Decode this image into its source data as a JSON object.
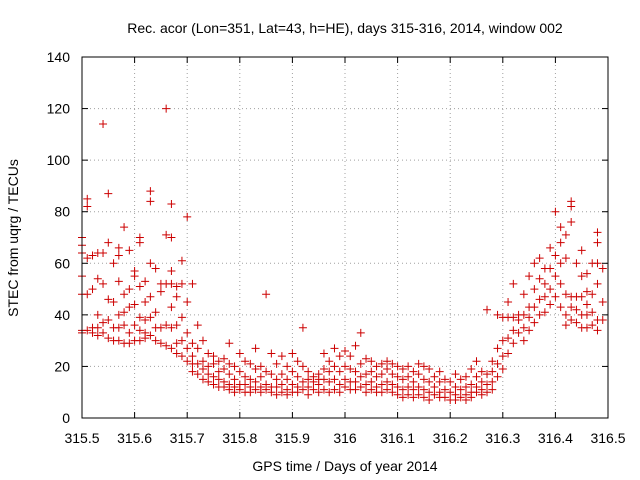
{
  "chart_data": {
    "type": "scatter",
    "title": "Rec. acor (Lon=351, Lat=43, h=HE), days 315-316, 2014, window 002",
    "xlabel": "GPS time / Days of year 2014",
    "ylabel": "STEC from uqrg / TECUs",
    "xlim": [
      315.5,
      316.5
    ],
    "ylim": [
      0,
      140
    ],
    "grid": true,
    "marker": "plus",
    "marker_color": "#cc0000",
    "xticks": [
      "315.5",
      "315.6",
      "315.7",
      "315.8",
      "315.9",
      "316",
      "316.1",
      "316.2",
      "316.3",
      "316.4",
      "316.5"
    ],
    "yticks": [
      "0",
      "20",
      "40",
      "60",
      "80",
      "100",
      "120",
      "140"
    ],
    "points": [
      [
        315.5,
        70
      ],
      [
        315.5,
        67
      ],
      [
        315.5,
        64
      ],
      [
        315.5,
        55
      ],
      [
        315.5,
        48
      ],
      [
        315.5,
        34
      ],
      [
        315.5,
        33
      ],
      [
        315.51,
        85
      ],
      [
        315.51,
        82
      ],
      [
        315.51,
        62
      ],
      [
        315.51,
        48
      ],
      [
        315.51,
        34
      ],
      [
        315.52,
        63
      ],
      [
        315.52,
        50
      ],
      [
        315.52,
        35
      ],
      [
        315.52,
        33
      ],
      [
        315.53,
        64
      ],
      [
        315.53,
        54
      ],
      [
        315.53,
        40
      ],
      [
        315.53,
        35
      ],
      [
        315.53,
        32
      ],
      [
        315.54,
        114
      ],
      [
        315.54,
        64
      ],
      [
        315.54,
        52
      ],
      [
        315.54,
        37
      ],
      [
        315.54,
        33
      ],
      [
        315.55,
        87
      ],
      [
        315.55,
        68
      ],
      [
        315.55,
        46
      ],
      [
        315.55,
        38
      ],
      [
        315.55,
        31
      ],
      [
        315.56,
        60
      ],
      [
        315.56,
        45
      ],
      [
        315.56,
        35
      ],
      [
        315.56,
        30
      ],
      [
        315.57,
        66
      ],
      [
        315.57,
        63
      ],
      [
        315.57,
        53
      ],
      [
        315.57,
        40
      ],
      [
        315.57,
        35
      ],
      [
        315.57,
        30
      ],
      [
        315.58,
        74
      ],
      [
        315.58,
        48
      ],
      [
        315.58,
        41
      ],
      [
        315.58,
        36
      ],
      [
        315.58,
        29
      ],
      [
        315.59,
        65
      ],
      [
        315.59,
        50
      ],
      [
        315.59,
        43
      ],
      [
        315.59,
        33
      ],
      [
        315.59,
        29
      ],
      [
        315.6,
        57
      ],
      [
        315.6,
        55
      ],
      [
        315.6,
        44
      ],
      [
        315.6,
        36
      ],
      [
        315.6,
        30
      ],
      [
        315.61,
        70
      ],
      [
        315.61,
        68
      ],
      [
        315.61,
        51
      ],
      [
        315.61,
        39
      ],
      [
        315.61,
        34
      ],
      [
        315.61,
        30
      ],
      [
        315.62,
        53
      ],
      [
        315.62,
        45
      ],
      [
        315.62,
        38
      ],
      [
        315.62,
        33
      ],
      [
        315.62,
        31
      ],
      [
        315.63,
        88
      ],
      [
        315.63,
        84
      ],
      [
        315.63,
        60
      ],
      [
        315.63,
        47
      ],
      [
        315.63,
        39
      ],
      [
        315.63,
        32
      ],
      [
        315.64,
        58
      ],
      [
        315.64,
        41
      ],
      [
        315.64,
        35
      ],
      [
        315.64,
        30
      ],
      [
        315.65,
        52
      ],
      [
        315.65,
        49
      ],
      [
        315.65,
        35
      ],
      [
        315.65,
        29
      ],
      [
        315.66,
        120
      ],
      [
        315.66,
        71
      ],
      [
        315.66,
        52
      ],
      [
        315.66,
        36
      ],
      [
        315.66,
        28
      ],
      [
        315.67,
        83
      ],
      [
        315.67,
        70
      ],
      [
        315.67,
        57
      ],
      [
        315.67,
        52
      ],
      [
        315.67,
        43
      ],
      [
        315.67,
        35
      ],
      [
        315.67,
        27
      ],
      [
        315.68,
        51
      ],
      [
        315.68,
        47
      ],
      [
        315.68,
        36
      ],
      [
        315.68,
        29
      ],
      [
        315.68,
        25
      ],
      [
        315.69,
        61
      ],
      [
        315.69,
        52
      ],
      [
        315.69,
        39
      ],
      [
        315.69,
        30
      ],
      [
        315.69,
        24
      ],
      [
        315.7,
        78
      ],
      [
        315.7,
        45
      ],
      [
        315.7,
        33
      ],
      [
        315.7,
        27
      ],
      [
        315.7,
        22
      ],
      [
        315.71,
        52
      ],
      [
        315.71,
        29
      ],
      [
        315.71,
        24
      ],
      [
        315.71,
        21
      ],
      [
        315.71,
        18
      ],
      [
        315.72,
        36
      ],
      [
        315.72,
        27
      ],
      [
        315.72,
        21
      ],
      [
        315.72,
        17
      ],
      [
        315.73,
        30
      ],
      [
        315.73,
        22
      ],
      [
        315.73,
        19
      ],
      [
        315.73,
        15
      ],
      [
        315.74,
        25
      ],
      [
        315.74,
        20
      ],
      [
        315.74,
        17
      ],
      [
        315.74,
        14
      ],
      [
        315.75,
        24
      ],
      [
        315.75,
        21
      ],
      [
        315.75,
        16
      ],
      [
        315.75,
        13
      ],
      [
        315.76,
        22
      ],
      [
        315.76,
        18
      ],
      [
        315.76,
        15
      ],
      [
        315.76,
        12
      ],
      [
        315.77,
        23
      ],
      [
        315.77,
        19
      ],
      [
        315.77,
        14
      ],
      [
        315.77,
        12
      ],
      [
        315.78,
        29
      ],
      [
        315.78,
        21
      ],
      [
        315.78,
        17
      ],
      [
        315.78,
        13
      ],
      [
        315.78,
        11
      ],
      [
        315.79,
        20
      ],
      [
        315.79,
        15
      ],
      [
        315.79,
        12
      ],
      [
        315.79,
        10
      ],
      [
        315.8,
        25
      ],
      [
        315.8,
        18
      ],
      [
        315.8,
        13
      ],
      [
        315.8,
        11
      ],
      [
        315.81,
        22
      ],
      [
        315.81,
        16
      ],
      [
        315.81,
        13
      ],
      [
        315.81,
        10
      ],
      [
        315.82,
        21
      ],
      [
        315.82,
        15
      ],
      [
        315.82,
        12
      ],
      [
        315.82,
        10
      ],
      [
        315.83,
        27
      ],
      [
        315.83,
        19
      ],
      [
        315.83,
        14
      ],
      [
        315.83,
        11
      ],
      [
        315.84,
        20
      ],
      [
        315.84,
        16
      ],
      [
        315.84,
        12
      ],
      [
        315.84,
        10
      ],
      [
        315.85,
        48
      ],
      [
        315.85,
        18
      ],
      [
        315.85,
        13
      ],
      [
        315.85,
        11
      ],
      [
        315.86,
        25
      ],
      [
        315.86,
        17
      ],
      [
        315.86,
        12
      ],
      [
        315.86,
        10
      ],
      [
        315.87,
        21
      ],
      [
        315.87,
        15
      ],
      [
        315.87,
        12
      ],
      [
        315.87,
        9
      ],
      [
        315.88,
        24
      ],
      [
        315.88,
        17
      ],
      [
        315.88,
        13
      ],
      [
        315.88,
        10
      ],
      [
        315.89,
        20
      ],
      [
        315.89,
        15
      ],
      [
        315.89,
        11
      ],
      [
        315.89,
        9
      ],
      [
        315.9,
        25
      ],
      [
        315.9,
        18
      ],
      [
        315.9,
        13
      ],
      [
        315.9,
        10
      ],
      [
        315.91,
        22
      ],
      [
        315.91,
        16
      ],
      [
        315.91,
        12
      ],
      [
        315.91,
        10
      ],
      [
        315.92,
        35
      ],
      [
        315.92,
        20
      ],
      [
        315.92,
        14
      ],
      [
        315.92,
        11
      ],
      [
        315.93,
        18
      ],
      [
        315.93,
        15
      ],
      [
        315.93,
        12
      ],
      [
        315.93,
        9
      ],
      [
        315.94,
        16
      ],
      [
        315.94,
        14
      ],
      [
        315.94,
        11
      ],
      [
        315.95,
        17
      ],
      [
        315.95,
        15
      ],
      [
        315.95,
        13
      ],
      [
        315.95,
        10
      ],
      [
        315.96,
        25
      ],
      [
        315.96,
        19
      ],
      [
        315.96,
        15
      ],
      [
        315.96,
        11
      ],
      [
        315.97,
        22
      ],
      [
        315.97,
        18
      ],
      [
        315.97,
        14
      ],
      [
        315.97,
        10
      ],
      [
        315.98,
        27
      ],
      [
        315.98,
        20
      ],
      [
        315.98,
        15
      ],
      [
        315.98,
        11
      ],
      [
        315.99,
        24
      ],
      [
        315.99,
        18
      ],
      [
        315.99,
        13
      ],
      [
        315.99,
        10
      ],
      [
        316.0,
        26
      ],
      [
        316.0,
        20
      ],
      [
        316.0,
        15
      ],
      [
        316.0,
        12
      ],
      [
        316.01,
        24
      ],
      [
        316.01,
        19
      ],
      [
        316.01,
        14
      ],
      [
        316.01,
        11
      ],
      [
        316.02,
        28
      ],
      [
        316.02,
        18
      ],
      [
        316.02,
        14
      ],
      [
        316.02,
        11
      ],
      [
        316.03,
        33
      ],
      [
        316.03,
        21
      ],
      [
        316.03,
        16
      ],
      [
        316.03,
        12
      ],
      [
        316.04,
        23
      ],
      [
        316.04,
        17
      ],
      [
        316.04,
        13
      ],
      [
        316.04,
        10
      ],
      [
        316.05,
        22
      ],
      [
        316.05,
        18
      ],
      [
        316.05,
        14
      ],
      [
        316.05,
        11
      ],
      [
        316.06,
        20
      ],
      [
        316.06,
        16
      ],
      [
        316.06,
        12
      ],
      [
        316.06,
        10
      ],
      [
        316.07,
        21
      ],
      [
        316.07,
        17
      ],
      [
        316.07,
        13
      ],
      [
        316.07,
        10
      ],
      [
        316.08,
        22
      ],
      [
        316.08,
        19
      ],
      [
        316.08,
        14
      ],
      [
        316.08,
        11
      ],
      [
        316.09,
        21
      ],
      [
        316.09,
        17
      ],
      [
        316.09,
        13
      ],
      [
        316.09,
        10
      ],
      [
        316.1,
        20
      ],
      [
        316.1,
        16
      ],
      [
        316.1,
        12
      ],
      [
        316.1,
        9
      ],
      [
        316.11,
        19
      ],
      [
        316.11,
        15
      ],
      [
        316.11,
        11
      ],
      [
        316.11,
        8
      ],
      [
        316.12,
        20
      ],
      [
        316.12,
        16
      ],
      [
        316.12,
        12
      ],
      [
        316.12,
        9
      ],
      [
        316.13,
        18
      ],
      [
        316.13,
        14
      ],
      [
        316.13,
        11
      ],
      [
        316.13,
        8
      ],
      [
        316.14,
        21
      ],
      [
        316.14,
        17
      ],
      [
        316.14,
        12
      ],
      [
        316.14,
        9
      ],
      [
        316.15,
        20
      ],
      [
        316.15,
        15
      ],
      [
        316.15,
        11
      ],
      [
        316.15,
        8
      ],
      [
        316.16,
        19
      ],
      [
        316.16,
        14
      ],
      [
        316.16,
        10
      ],
      [
        316.16,
        7
      ],
      [
        316.17,
        16
      ],
      [
        316.17,
        12
      ],
      [
        316.17,
        9
      ],
      [
        316.18,
        18
      ],
      [
        316.18,
        14
      ],
      [
        316.18,
        10
      ],
      [
        316.18,
        8
      ],
      [
        316.19,
        15
      ],
      [
        316.19,
        11
      ],
      [
        316.19,
        8
      ],
      [
        316.2,
        14
      ],
      [
        316.2,
        10
      ],
      [
        316.2,
        7
      ],
      [
        316.21,
        17
      ],
      [
        316.21,
        12
      ],
      [
        316.21,
        9
      ],
      [
        316.21,
        7
      ],
      [
        316.22,
        15
      ],
      [
        316.22,
        11
      ],
      [
        316.22,
        8
      ],
      [
        316.23,
        16
      ],
      [
        316.23,
        12
      ],
      [
        316.23,
        9
      ],
      [
        316.23,
        7
      ],
      [
        316.24,
        19
      ],
      [
        316.24,
        13
      ],
      [
        316.24,
        10
      ],
      [
        316.24,
        8
      ],
      [
        316.25,
        22
      ],
      [
        316.25,
        16
      ],
      [
        316.25,
        12
      ],
      [
        316.25,
        10
      ],
      [
        316.26,
        18
      ],
      [
        316.26,
        14
      ],
      [
        316.26,
        11
      ],
      [
        316.26,
        9
      ],
      [
        316.27,
        42
      ],
      [
        316.27,
        17
      ],
      [
        316.27,
        13
      ],
      [
        316.27,
        10
      ],
      [
        316.28,
        22
      ],
      [
        316.28,
        18
      ],
      [
        316.28,
        14
      ],
      [
        316.28,
        11
      ],
      [
        316.29,
        40
      ],
      [
        316.29,
        27
      ],
      [
        316.29,
        21
      ],
      [
        316.29,
        16
      ],
      [
        316.3,
        39
      ],
      [
        316.3,
        30
      ],
      [
        316.3,
        24
      ],
      [
        316.3,
        19
      ],
      [
        316.31,
        45
      ],
      [
        316.31,
        39
      ],
      [
        316.31,
        31
      ],
      [
        316.31,
        25
      ],
      [
        316.32,
        52
      ],
      [
        316.32,
        39
      ],
      [
        316.32,
        34
      ],
      [
        316.32,
        29
      ],
      [
        316.33,
        40
      ],
      [
        316.33,
        38
      ],
      [
        316.33,
        33
      ],
      [
        316.34,
        48
      ],
      [
        316.34,
        40
      ],
      [
        316.34,
        35
      ],
      [
        316.34,
        30
      ],
      [
        316.35,
        55
      ],
      [
        316.35,
        43
      ],
      [
        316.35,
        39
      ],
      [
        316.35,
        34
      ],
      [
        316.36,
        60
      ],
      [
        316.36,
        50
      ],
      [
        316.36,
        43
      ],
      [
        316.36,
        37
      ],
      [
        316.37,
        62
      ],
      [
        316.37,
        54
      ],
      [
        316.37,
        46
      ],
      [
        316.37,
        40
      ],
      [
        316.38,
        58
      ],
      [
        316.38,
        52
      ],
      [
        316.38,
        47
      ],
      [
        316.38,
        41
      ],
      [
        316.39,
        66
      ],
      [
        316.39,
        58
      ],
      [
        316.39,
        50
      ],
      [
        316.39,
        44
      ],
      [
        316.4,
        80
      ],
      [
        316.4,
        63
      ],
      [
        316.4,
        55
      ],
      [
        316.4,
        47
      ],
      [
        316.41,
        74
      ],
      [
        316.41,
        68
      ],
      [
        316.41,
        60
      ],
      [
        316.41,
        52
      ],
      [
        316.41,
        43
      ],
      [
        316.42,
        71
      ],
      [
        316.42,
        62
      ],
      [
        316.42,
        48
      ],
      [
        316.42,
        40
      ],
      [
        316.42,
        36
      ],
      [
        316.43,
        84
      ],
      [
        316.43,
        82
      ],
      [
        316.43,
        76
      ],
      [
        316.43,
        47
      ],
      [
        316.43,
        43
      ],
      [
        316.43,
        38
      ],
      [
        316.44,
        60
      ],
      [
        316.44,
        47
      ],
      [
        316.44,
        42
      ],
      [
        316.44,
        37
      ],
      [
        316.45,
        65
      ],
      [
        316.45,
        55
      ],
      [
        316.45,
        47
      ],
      [
        316.45,
        40
      ],
      [
        316.45,
        35
      ],
      [
        316.46,
        56
      ],
      [
        316.46,
        49
      ],
      [
        316.46,
        44
      ],
      [
        316.46,
        40
      ],
      [
        316.46,
        35
      ],
      [
        316.47,
        60
      ],
      [
        316.47,
        48
      ],
      [
        316.47,
        41
      ],
      [
        316.47,
        36
      ],
      [
        316.48,
        72
      ],
      [
        316.48,
        68
      ],
      [
        316.48,
        60
      ],
      [
        316.48,
        52
      ],
      [
        316.48,
        38
      ],
      [
        316.48,
        34
      ],
      [
        316.49,
        58
      ],
      [
        316.49,
        45
      ],
      [
        316.49,
        38
      ]
    ]
  }
}
